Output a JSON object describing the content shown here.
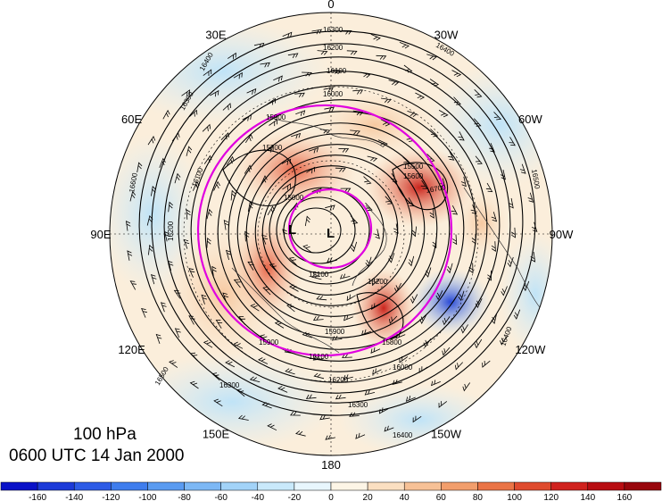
{
  "title": {
    "level": "100 hPa",
    "time": "0600 UTC 14 Jan 2000"
  },
  "longitude_labels": [
    {
      "text": "0",
      "angle": 0
    },
    {
      "text": "30W",
      "angle": 30
    },
    {
      "text": "60W",
      "angle": 60
    },
    {
      "text": "90W",
      "angle": 90
    },
    {
      "text": "120W",
      "angle": 120
    },
    {
      "text": "150W",
      "angle": 150
    },
    {
      "text": "180",
      "angle": 180
    },
    {
      "text": "150E",
      "angle": 210
    },
    {
      "text": "120E",
      "angle": 240
    },
    {
      "text": "90E",
      "angle": 270
    },
    {
      "text": "60E",
      "angle": 300
    },
    {
      "text": "30E",
      "angle": 330
    }
  ],
  "lows": [
    {
      "text": "L",
      "id": "low-1"
    },
    {
      "text": "L",
      "id": "low-2"
    }
  ],
  "contour_labels": [
    "16500",
    "16400",
    "16300",
    "16200",
    "16100",
    "16000",
    "15900",
    "15800",
    "15700",
    "15600",
    "15500",
    "15200",
    "15100",
    "15000",
    "16600",
    "16700"
  ],
  "colorbar": {
    "ticks": [
      "-160",
      "-140",
      "-120",
      "-100",
      "-80",
      "-60",
      "-40",
      "-20",
      "0",
      "20",
      "40",
      "60",
      "80",
      "100",
      "120",
      "140",
      "160"
    ],
    "colors": [
      "#0a12c8",
      "#1c3ad8",
      "#2d5be6",
      "#3f7ded",
      "#5a9bf1",
      "#7db8f5",
      "#a2d3f8",
      "#c9e9fb",
      "#e8f6fd",
      "#fdf5e6",
      "#fbdfc1",
      "#f7c196",
      "#f29e6c",
      "#ea7446",
      "#df4b2e",
      "#d0221e",
      "#b80d12",
      "#98060c"
    ]
  },
  "colors": {
    "ring": "#e000e0",
    "contour": "#000000"
  }
}
